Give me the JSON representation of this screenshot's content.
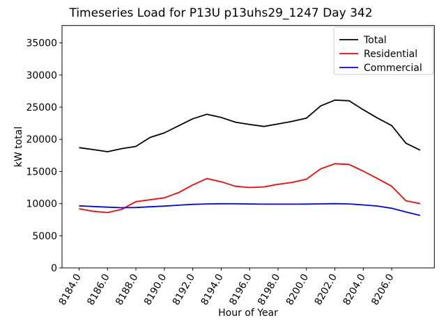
{
  "figure": {
    "title": "Timeseries Load for P13U p13uhs29_1247  Day 342",
    "xlabel": "Hour of Year",
    "ylabel": "kW total"
  },
  "legend": {
    "position": "upper right",
    "entries": [
      "Total",
      "Residential",
      "Commercial"
    ]
  },
  "colors": {
    "total": "#000000",
    "residential": "#ff0000",
    "commercial": "#0000ff",
    "spine": "#000000",
    "legend_border": "#cccccc",
    "background": "#ffffff"
  },
  "chart_data": {
    "type": "line",
    "title": "Timeseries Load for P13U p13uhs29_1247  Day 342",
    "xlabel": "Hour of Year",
    "ylabel": "kW total",
    "grid": false,
    "legend_position": "upper right",
    "xlim": [
      8182.8,
      8209.0
    ],
    "ylim": [
      0,
      37700
    ],
    "xtick_values": [
      8184,
      8186,
      8188,
      8190,
      8192,
      8194,
      8196,
      8198,
      8200,
      8202,
      8204,
      8206
    ],
    "xtick_labels": [
      "8184.0",
      "8186.0",
      "8188.0",
      "8190.0",
      "8192.0",
      "8194.0",
      "8196.0",
      "8198.0",
      "8200.0",
      "8202.0",
      "8204.0",
      "8206.0"
    ],
    "ytick_values": [
      0,
      5000,
      10000,
      15000,
      20000,
      25000,
      30000,
      35000
    ],
    "ytick_labels": [
      "0",
      "5000",
      "10000",
      "15000",
      "20000",
      "25000",
      "30000",
      "35000"
    ],
    "hours": [
      8184,
      8185,
      8186,
      8187,
      8188,
      8189,
      8190,
      8191,
      8192,
      8193,
      8194,
      8195,
      8196,
      8197,
      8198,
      8199,
      8200,
      8201,
      8202,
      8203,
      8204,
      8205,
      8206,
      8207,
      8208
    ],
    "series": [
      {
        "name": "Total",
        "color": "#000000",
        "values": [
          18700,
          18400,
          18080,
          18550,
          18900,
          20300,
          21000,
          22100,
          23200,
          23900,
          23400,
          22670,
          22310,
          22000,
          22400,
          22800,
          23300,
          25200,
          26100,
          26000,
          24600,
          23300,
          22150,
          19400,
          18310
        ]
      },
      {
        "name": "Residential",
        "color": "#ff0000",
        "values": [
          9200,
          8800,
          8600,
          9100,
          10300,
          10600,
          10900,
          11700,
          12900,
          13900,
          13400,
          12700,
          12500,
          12600,
          13000,
          13300,
          13800,
          15400,
          16200,
          16100,
          15050,
          13900,
          12700,
          10450,
          10000
        ]
      },
      {
        "name": "Commercial",
        "color": "#0000ff",
        "values": [
          9650,
          9550,
          9450,
          9360,
          9400,
          9500,
          9610,
          9750,
          9880,
          9950,
          9980,
          9970,
          9940,
          9920,
          9910,
          9910,
          9930,
          9960,
          9990,
          9950,
          9800,
          9620,
          9280,
          8700,
          8160
        ]
      }
    ]
  }
}
